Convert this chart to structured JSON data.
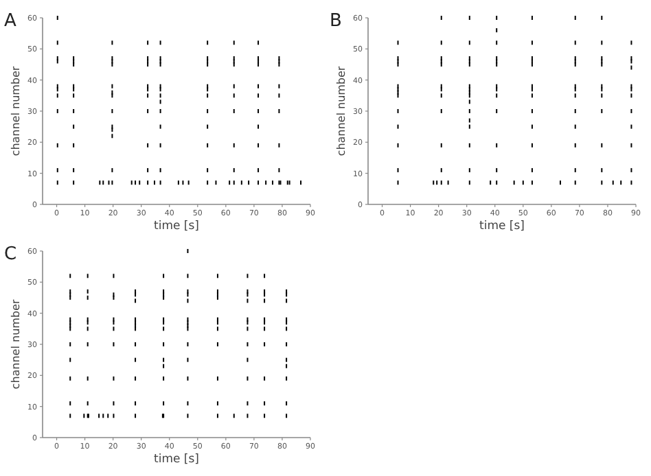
{
  "chart_data": [
    {
      "type": "scatter",
      "title": "A",
      "xlabel": "time [s]",
      "ylabel": "channel number",
      "xlim": [
        -5,
        90
      ],
      "ylim": [
        0,
        60
      ],
      "xticks": [
        0,
        10,
        20,
        30,
        40,
        50,
        60,
        70,
        80,
        90
      ],
      "yticks": [
        0,
        10,
        20,
        30,
        40,
        50,
        60
      ],
      "grid": false,
      "series": [
        {
          "color": "#000000",
          "x": [
            0.3,
            0.3,
            0.3,
            0.3,
            0.3,
            0.3,
            0.3,
            0.3,
            0.3,
            0.3,
            0.3,
            6,
            6,
            6,
            6,
            6,
            6,
            6,
            6,
            6,
            6,
            6,
            19.7,
            19.7,
            19.7,
            19.7,
            19.7,
            19.7,
            19.7,
            19.7,
            19.7,
            19.7,
            19.7,
            19.7,
            19.7,
            32.3,
            32.3,
            32.3,
            32.3,
            32.3,
            32.3,
            32.3,
            32.3,
            32.3,
            32.3,
            32.3,
            36.8,
            36.8,
            36.8,
            36.8,
            36.8,
            36.8,
            36.8,
            36.8,
            36.8,
            36.8,
            36.8,
            36.8,
            36.8,
            53.5,
            53.5,
            53.5,
            53.5,
            53.5,
            53.5,
            53.5,
            53.5,
            53.5,
            53.5,
            53.5,
            53.5,
            62.9,
            62.9,
            62.9,
            62.9,
            62.9,
            62.9,
            62.9,
            62.9,
            62.9,
            62.9,
            71.5,
            71.5,
            71.5,
            71.5,
            71.5,
            71.5,
            71.5,
            71.5,
            71.5,
            71.5,
            71.5,
            78.9,
            78.9,
            78.9,
            78.9,
            78.9,
            78.9,
            78.9,
            78.9,
            78.9,
            15.3,
            16.5,
            18.5,
            26.6,
            27.9,
            29.4,
            34.7,
            43.2,
            44.8,
            46.8,
            56.5,
            61.3,
            65.6,
            68.1,
            74.2,
            76.6,
            79.4,
            81.9,
            82.6,
            86.6
          ],
          "values": [
            7,
            11,
            19,
            30,
            35,
            37,
            38,
            46,
            47,
            52,
            60,
            7,
            11,
            19,
            25,
            30,
            35,
            37,
            38,
            45,
            46,
            47,
            7,
            11,
            22,
            24,
            25,
            30,
            35,
            36,
            38,
            45,
            46,
            47,
            52,
            7,
            11,
            19,
            30,
            35,
            37,
            38,
            45,
            46,
            47,
            52,
            7,
            11,
            19,
            25,
            30,
            33,
            35,
            37,
            38,
            45,
            46,
            47,
            52,
            7,
            11,
            19,
            25,
            30,
            35,
            37,
            38,
            45,
            46,
            47,
            52,
            7,
            11,
            19,
            30,
            35,
            38,
            45,
            46,
            47,
            52,
            7,
            11,
            19,
            25,
            30,
            35,
            38,
            45,
            46,
            47,
            52,
            7,
            11,
            19,
            30,
            35,
            38,
            45,
            46,
            47,
            7,
            7,
            7,
            7,
            7,
            7,
            7,
            7,
            7,
            7,
            7,
            7,
            7,
            7,
            7,
            7,
            7,
            7,
            7,
            7
          ]
        }
      ]
    },
    {
      "type": "scatter",
      "title": "B",
      "xlabel": "time [s]",
      "ylabel": "channel number",
      "xlim": [
        -5,
        90
      ],
      "ylim": [
        0,
        60
      ],
      "xticks": [
        0,
        10,
        20,
        30,
        40,
        50,
        60,
        70,
        80,
        90
      ],
      "yticks": [
        0,
        10,
        20,
        30,
        40,
        50,
        60
      ],
      "grid": false,
      "series": [
        {
          "color": "#000000",
          "x": [
            5.6,
            5.6,
            5.6,
            5.6,
            5.6,
            5.6,
            5.6,
            5.6,
            5.6,
            5.6,
            5.6,
            5.6,
            5.6,
            21,
            21,
            21,
            21,
            21,
            21,
            21,
            21,
            21,
            21,
            21,
            21,
            31,
            31,
            31,
            31,
            31,
            31,
            31,
            31,
            31,
            31,
            31,
            31,
            31,
            31,
            31,
            31,
            40.6,
            40.6,
            40.6,
            40.6,
            40.6,
            40.6,
            40.6,
            40.6,
            40.6,
            40.6,
            40.6,
            40.6,
            40.6,
            53.2,
            53.2,
            53.2,
            53.2,
            53.2,
            53.2,
            53.2,
            53.2,
            53.2,
            53.2,
            53.2,
            53.2,
            53.2,
            68.5,
            68.5,
            68.5,
            68.5,
            68.5,
            68.5,
            68.5,
            68.5,
            68.5,
            68.5,
            68.5,
            68.5,
            68.5,
            77.9,
            77.9,
            77.9,
            77.9,
            77.9,
            77.9,
            77.9,
            77.9,
            77.9,
            77.9,
            77.9,
            77.9,
            88.4,
            88.4,
            88.4,
            88.4,
            88.4,
            88.4,
            88.4,
            88.4,
            88.4,
            88.4,
            88.4,
            88.4,
            18.2,
            19.4,
            23.4,
            38.4,
            46.8,
            50,
            63.2,
            81.9,
            84.7
          ],
          "values": [
            7,
            11,
            19,
            25,
            30,
            35,
            36,
            37,
            38,
            45,
            46,
            47,
            52,
            7,
            11,
            19,
            30,
            35,
            37,
            38,
            45,
            46,
            47,
            52,
            60,
            7,
            11,
            19,
            25,
            27,
            30,
            33,
            35,
            36,
            37,
            38,
            45,
            46,
            47,
            52,
            60,
            7,
            11,
            19,
            30,
            35,
            37,
            38,
            45,
            46,
            47,
            52,
            56,
            60,
            7,
            11,
            19,
            25,
            30,
            35,
            37,
            38,
            45,
            46,
            47,
            52,
            60,
            7,
            11,
            19,
            25,
            30,
            35,
            37,
            38,
            45,
            46,
            47,
            52,
            60,
            7,
            11,
            19,
            30,
            35,
            37,
            38,
            45,
            46,
            47,
            52,
            60,
            7,
            11,
            19,
            25,
            30,
            35,
            37,
            38,
            44,
            46,
            47,
            52,
            7,
            7,
            7,
            7,
            7,
            7,
            7,
            7,
            7
          ]
        }
      ]
    },
    {
      "type": "scatter",
      "title": "C",
      "xlabel": "time [s]",
      "ylabel": "channel number",
      "xlim": [
        -5,
        90
      ],
      "ylim": [
        0,
        60
      ],
      "xticks": [
        0,
        10,
        20,
        30,
        40,
        50,
        60,
        70,
        80,
        90
      ],
      "yticks": [
        0,
        10,
        20,
        30,
        40,
        50,
        60
      ],
      "grid": false,
      "series": [
        {
          "color": "#000000",
          "x": [
            4.8,
            4.8,
            4.8,
            4.8,
            4.8,
            4.8,
            4.8,
            4.8,
            4.8,
            4.8,
            4.8,
            4.8,
            4.8,
            11,
            11,
            11,
            11,
            11,
            11,
            11,
            11,
            11,
            11,
            20.2,
            20.2,
            20.2,
            20.2,
            20.2,
            20.2,
            20.2,
            20.2,
            20.2,
            20.2,
            27.9,
            27.9,
            27.9,
            27.9,
            27.9,
            27.9,
            27.9,
            27.9,
            27.9,
            27.9,
            27.9,
            27.9,
            37.9,
            37.9,
            37.9,
            37.9,
            37.9,
            37.9,
            37.9,
            37.9,
            37.9,
            37.9,
            37.9,
            37.9,
            37.9,
            46.5,
            46.5,
            46.5,
            46.5,
            46.5,
            46.5,
            46.5,
            46.5,
            46.5,
            46.5,
            46.5,
            46.5,
            46.5,
            46.5,
            57.1,
            57.1,
            57.1,
            57.1,
            57.1,
            57.1,
            57.1,
            57.1,
            57.1,
            57.1,
            57.1,
            67.7,
            67.7,
            67.7,
            67.7,
            67.7,
            67.7,
            67.7,
            67.7,
            67.7,
            67.7,
            67.7,
            67.7,
            73.7,
            73.7,
            73.7,
            73.7,
            73.7,
            73.7,
            73.7,
            73.7,
            73.7,
            73.7,
            73.7,
            81.5,
            81.5,
            81.5,
            81.5,
            81.5,
            81.5,
            81.5,
            81.5,
            81.5,
            81.5,
            81.5,
            81.5,
            9.7,
            11.3,
            15,
            16.5,
            18.2,
            37.6,
            62.9
          ],
          "values": [
            7,
            11,
            19,
            25,
            30,
            35,
            36,
            37,
            38,
            45,
            46,
            47,
            52,
            7,
            11,
            19,
            30,
            35,
            37,
            38,
            45,
            47,
            52,
            7,
            11,
            19,
            30,
            35,
            37,
            38,
            45,
            46,
            52,
            7,
            11,
            19,
            25,
            30,
            35,
            36,
            37,
            38,
            44,
            46,
            47,
            7,
            11,
            19,
            23,
            25,
            30,
            35,
            37,
            38,
            45,
            46,
            47,
            52,
            7,
            11,
            19,
            25,
            30,
            35,
            36,
            37,
            38,
            44,
            46,
            47,
            52,
            60,
            7,
            11,
            19,
            30,
            35,
            37,
            38,
            45,
            46,
            47,
            52,
            7,
            11,
            19,
            25,
            30,
            35,
            37,
            38,
            44,
            46,
            47,
            52,
            7,
            11,
            19,
            30,
            35,
            37,
            38,
            44,
            46,
            47,
            52,
            7,
            11,
            19,
            23,
            25,
            30,
            35,
            37,
            38,
            44,
            46,
            47,
            7,
            7,
            7,
            7,
            7,
            7,
            7
          ]
        }
      ]
    }
  ]
}
